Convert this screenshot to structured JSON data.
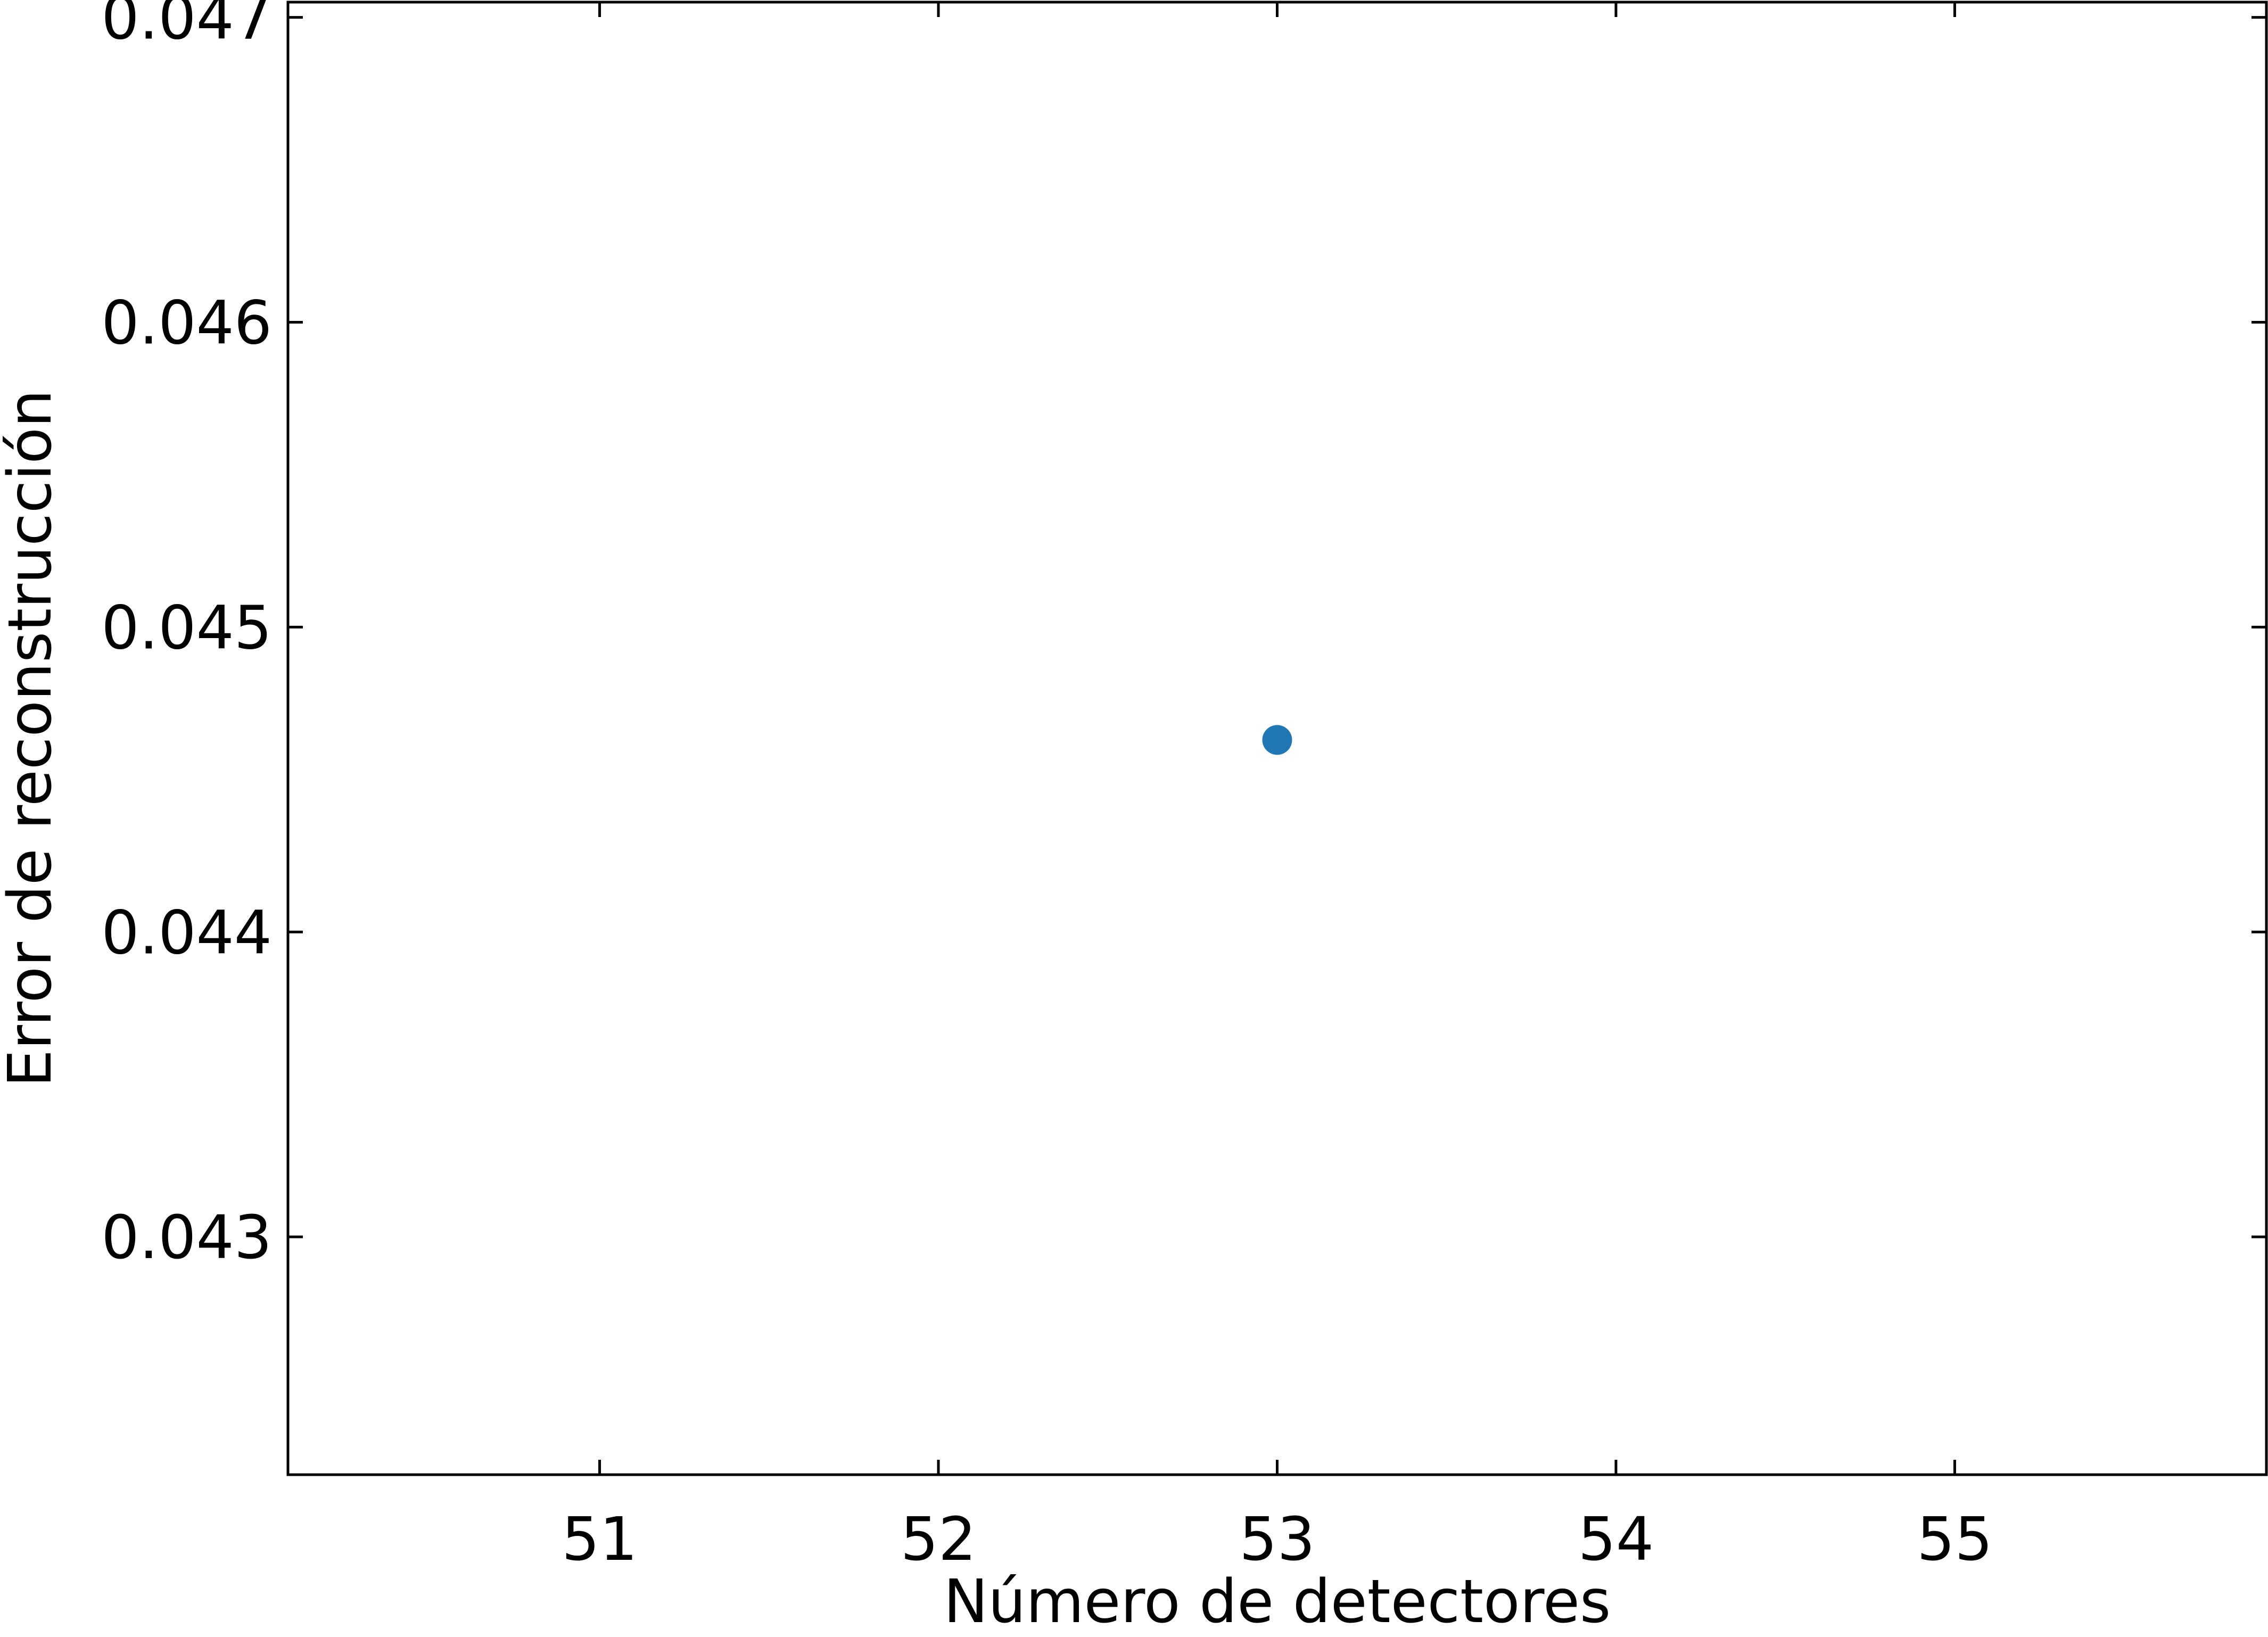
{
  "chart_data": {
    "type": "scatter",
    "title": "",
    "xlabel": "Número de detectores",
    "ylabel": "Error de reconstrucción",
    "xlim": [
      50.08,
      55.92
    ],
    "ylim": [
      0.04222,
      0.04705
    ],
    "x_ticks": [
      51,
      52,
      53,
      54,
      55
    ],
    "x_tick_labels": [
      "51",
      "52",
      "53",
      "54",
      "55"
    ],
    "y_ticks": [
      0.043,
      0.044,
      0.045,
      0.046,
      0.047
    ],
    "y_tick_labels": [
      "0.043",
      "0.044",
      "0.045",
      "0.046",
      "0.047"
    ],
    "grid": false,
    "series": [
      {
        "color": "#1f77b4",
        "points": [
          {
            "x": 53,
            "y": 0.04463
          }
        ]
      }
    ]
  }
}
